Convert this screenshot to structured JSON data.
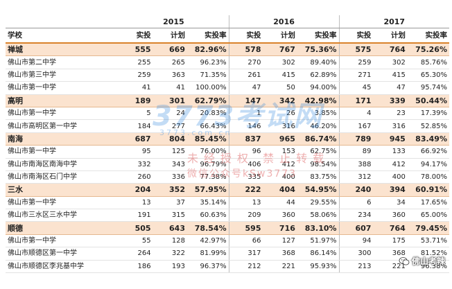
{
  "years": [
    "2015",
    "2016",
    "2017"
  ],
  "headers": {
    "school": "学校",
    "actual": "实投",
    "plan": "计划",
    "rate": "实投率"
  },
  "rows": [
    {
      "type": "district",
      "name": "禅城",
      "v": [
        "555",
        "669",
        "82.96%",
        "578",
        "767",
        "75.36%",
        "575",
        "764",
        "75.26%"
      ]
    },
    {
      "type": "school",
      "name": "佛山市第二中学",
      "v": [
        "255",
        "265",
        "96.23%",
        "270",
        "302",
        "89.40%",
        "259",
        "302",
        "85.76%"
      ]
    },
    {
      "type": "school",
      "name": "佛山市第三中学",
      "v": [
        "259",
        "363",
        "71.35%",
        "261",
        "415",
        "62.89%",
        "271",
        "415",
        "65.30%"
      ]
    },
    {
      "type": "school",
      "name": "佛山市第一中学",
      "v": [
        "41",
        "41",
        "100.00%",
        "47",
        "50",
        "94.00%",
        "45",
        "47",
        "95.74%"
      ]
    },
    {
      "type": "district",
      "name": "高明",
      "v": [
        "189",
        "301",
        "62.79%",
        "147",
        "342",
        "42.98%",
        "171",
        "339",
        "50.44%"
      ]
    },
    {
      "type": "school",
      "name": "佛山市第一中学",
      "v": [
        "5",
        "24",
        "20.83%",
        "1",
        "26",
        "3.85%",
        "4",
        "23",
        "17.39%"
      ]
    },
    {
      "type": "school",
      "name": "佛山市高明区第一中学",
      "v": [
        "184",
        "277",
        "66.43%",
        "146",
        "316",
        "46.20%",
        "167",
        "316",
        "52.85%"
      ]
    },
    {
      "type": "district",
      "name": "南海",
      "v": [
        "687",
        "804",
        "85.45%",
        "837",
        "965",
        "86.74%",
        "789",
        "945",
        "83.49%"
      ]
    },
    {
      "type": "school",
      "name": "佛山市第一中学",
      "v": [
        "95",
        "125",
        "76.00%",
        "96",
        "153",
        "62.75%",
        "89",
        "133",
        "66.92%"
      ]
    },
    {
      "type": "school",
      "name": "佛山市南海区南海中学",
      "v": [
        "332",
        "343",
        "96.79%",
        "406",
        "412",
        "98.54%",
        "388",
        "412",
        "94.17%"
      ]
    },
    {
      "type": "school",
      "name": "佛山市南海区石门中学",
      "v": [
        "260",
        "336",
        "77.38%",
        "335",
        "400",
        "83.75%",
        "312",
        "400",
        "78.00%"
      ]
    },
    {
      "type": "district",
      "name": "三水",
      "v": [
        "204",
        "352",
        "57.95%",
        "222",
        "404",
        "54.95%",
        "240",
        "394",
        "60.91%"
      ]
    },
    {
      "type": "school",
      "name": "佛山市第一中学",
      "v": [
        "13",
        "37",
        "35.14%",
        "13",
        "44",
        "29.55%",
        "6",
        "34",
        "17.65%"
      ]
    },
    {
      "type": "school",
      "name": "佛山市三水区三水中学",
      "v": [
        "191",
        "315",
        "60.63%",
        "209",
        "360",
        "58.06%",
        "234",
        "360",
        "65.00%"
      ]
    },
    {
      "type": "district",
      "name": "顺德",
      "v": [
        "505",
        "643",
        "78.54%",
        "595",
        "716",
        "83.10%",
        "607",
        "764",
        "79.45%"
      ]
    },
    {
      "type": "school",
      "name": "佛山市第一中学",
      "v": [
        "55",
        "128",
        "42.97%",
        "66",
        "127",
        "51.97%",
        "94",
        "175",
        "53.71%"
      ]
    },
    {
      "type": "school",
      "name": "佛山市顺德区第一中学",
      "v": [
        "264",
        "322",
        "81.99%",
        "317",
        "368",
        "86.14%",
        "300",
        "368",
        "81.52%"
      ]
    },
    {
      "type": "school",
      "name": "佛山市顺德区李兆基中学",
      "v": [
        "186",
        "193",
        "96.37%",
        "212",
        "221",
        "95.93%",
        "213",
        "221",
        "96.38%"
      ]
    }
  ],
  "watermark": {
    "brand": "3773考试网",
    "url": "3773.com.cn",
    "line1": "未经授权 禁止转载",
    "line2": "微信公众号kSw3773"
  },
  "logo": {
    "text": "佛山考辣",
    "icon": "wechat-icon"
  },
  "colors": {
    "district_bg": "#fbe3cf",
    "header_underline": "#d9822b",
    "watermark_blue": "#2882dc",
    "watermark_red": "#dc5050"
  }
}
